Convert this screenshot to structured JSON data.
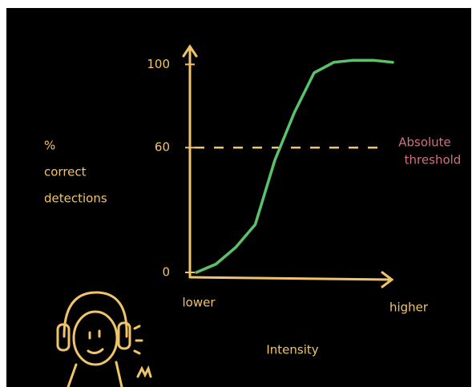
{
  "chart_data": {
    "type": "line",
    "y_label": [
      "%",
      "correct",
      "detections"
    ],
    "x_label": "Intensity",
    "x_axis_labels": [
      "lower",
      "higher"
    ],
    "series": [
      {
        "color": "#5cc16a",
        "values": [
          0,
          4,
          12,
          23,
          54,
          77,
          96,
          101,
          102,
          102,
          101
        ]
      }
    ],
    "ylim": [
      0,
      104
    ],
    "yticks": [
      0,
      60,
      100
    ],
    "threshold": {
      "value": 60,
      "label": [
        "Absolute",
        "threshold"
      ],
      "color": "#d4707e"
    },
    "axis_color": "#efc46a"
  }
}
